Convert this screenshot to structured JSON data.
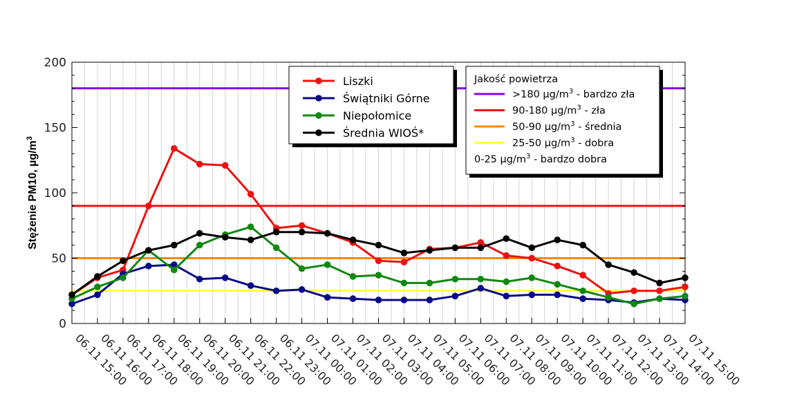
{
  "chart_data": {
    "type": "line",
    "ylabel": "Stężenie PM10, µg/m",
    "ylabel_sup": "3",
    "ylim": [
      0,
      200
    ],
    "yticks": [
      "0",
      "50",
      "100",
      "150",
      "200"
    ],
    "grid": "vertical",
    "x": [
      "06.11 15:00",
      "06.11 16:00",
      "06.11 17:00",
      "06.11 18:00",
      "06.11 19:00",
      "06.11 20:00",
      "06.11 21:00",
      "06.11 22:00",
      "06.11 23:00",
      "07.11 00:00",
      "07.11 01:00",
      "07.11 02:00",
      "07.11 03:00",
      "07.11 04:00",
      "07.11 05:00",
      "07.11 06:00",
      "07.11 07:00",
      "07.11 08:00",
      "07.11 09:00",
      "07.11 10:00",
      "07.11 11:00",
      "07.11 12:00",
      "07.11 13:00",
      "07.11 14:00",
      "07.11 15:00"
    ],
    "series": [
      {
        "name": "Liszki",
        "color": "#ee1111",
        "values": [
          22,
          35,
          41,
          90,
          134,
          122,
          121,
          99,
          73,
          75,
          69,
          62,
          48,
          47,
          57,
          58,
          62,
          52,
          50,
          44,
          37,
          23,
          25,
          25,
          28
        ]
      },
      {
        "name": "Świątniki Górne",
        "color": "#0a0a88",
        "values": [
          15,
          22,
          38,
          44,
          45,
          34,
          35,
          29,
          25,
          26,
          20,
          19,
          18,
          18,
          18,
          21,
          27,
          21,
          22,
          22,
          19,
          18,
          16,
          19,
          18
        ]
      },
      {
        "name": "Niepołomice",
        "color": "#118811",
        "values": [
          19,
          28,
          35,
          56,
          41,
          60,
          68,
          74,
          58,
          42,
          45,
          36,
          37,
          31,
          31,
          34,
          34,
          32,
          35,
          30,
          25,
          20,
          15,
          19,
          21
        ]
      },
      {
        "name": "Średnia WIOŚ*",
        "color": "#000000",
        "values": [
          22,
          36,
          48,
          56,
          60,
          69,
          66,
          64,
          70,
          70,
          69,
          64,
          60,
          54,
          56,
          58,
          58,
          65,
          58,
          64,
          60,
          45,
          39,
          31,
          35
        ]
      }
    ],
    "thresholds": [
      {
        "value": 180,
        "color": "#8800ee"
      },
      {
        "value": 90,
        "color": "#ee1111"
      },
      {
        "value": 50,
        "color": "#ff8800"
      },
      {
        "value": 25,
        "color": "#ffff44"
      }
    ],
    "legend_placement": "top-center",
    "air_quality_legend": {
      "title": "Jakość powietrza",
      "items": [
        {
          "color": "#8800ee",
          "prefix": ">180 µg/m",
          "sup": "3",
          "suffix": " - bardzo zła"
        },
        {
          "color": "#ee1111",
          "prefix": "90-180 µg/m",
          "sup": "3",
          "suffix": " - zła"
        },
        {
          "color": "#ff8800",
          "prefix": "50-90 µg/m",
          "sup": "3",
          "suffix": " - średnia"
        },
        {
          "color": "#ffff44",
          "prefix": "25-50 µg/m",
          "sup": "3",
          "suffix": " - dobra"
        },
        {
          "color": "",
          "prefix": "0-25 µg/m",
          "sup": "3",
          "suffix": " - bardzo dobra"
        }
      ]
    }
  }
}
